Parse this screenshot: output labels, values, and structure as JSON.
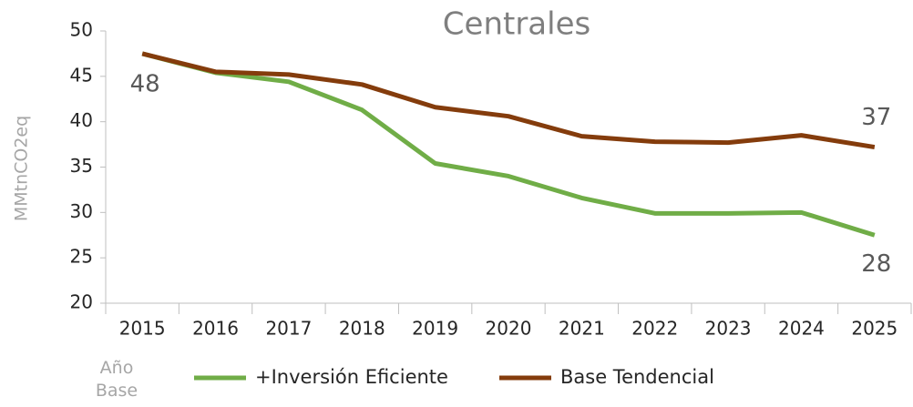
{
  "chart_data": {
    "type": "line",
    "title": "Centrales",
    "y_label": "MMtnCO2eq",
    "categories": [
      "2015",
      "2016",
      "2017",
      "2018",
      "2019",
      "2020",
      "2021",
      "2022",
      "2023",
      "2024",
      "2025"
    ],
    "x_annotation": "Año Base",
    "series": [
      {
        "name": "+Inversión Eficiente",
        "color": "#70ad47",
        "values": [
          47.5,
          45.4,
          44.4,
          41.3,
          35.4,
          34.0,
          31.6,
          29.9,
          29.9,
          30.0,
          27.5
        ],
        "value_labels": [
          null,
          null,
          null,
          null,
          null,
          null,
          null,
          null,
          null,
          null,
          "28"
        ]
      },
      {
        "name": "Base Tendencial",
        "color": "#843c0c",
        "values": [
          47.5,
          45.5,
          45.2,
          44.1,
          41.6,
          40.6,
          38.4,
          37.8,
          37.7,
          38.5,
          37.2
        ],
        "value_labels": [
          "48",
          null,
          null,
          null,
          null,
          null,
          null,
          null,
          null,
          null,
          "37"
        ]
      }
    ],
    "ylim": [
      20,
      50
    ],
    "yticks": [
      20,
      25,
      30,
      35,
      40,
      45,
      50
    ],
    "legend": "bottom"
  }
}
